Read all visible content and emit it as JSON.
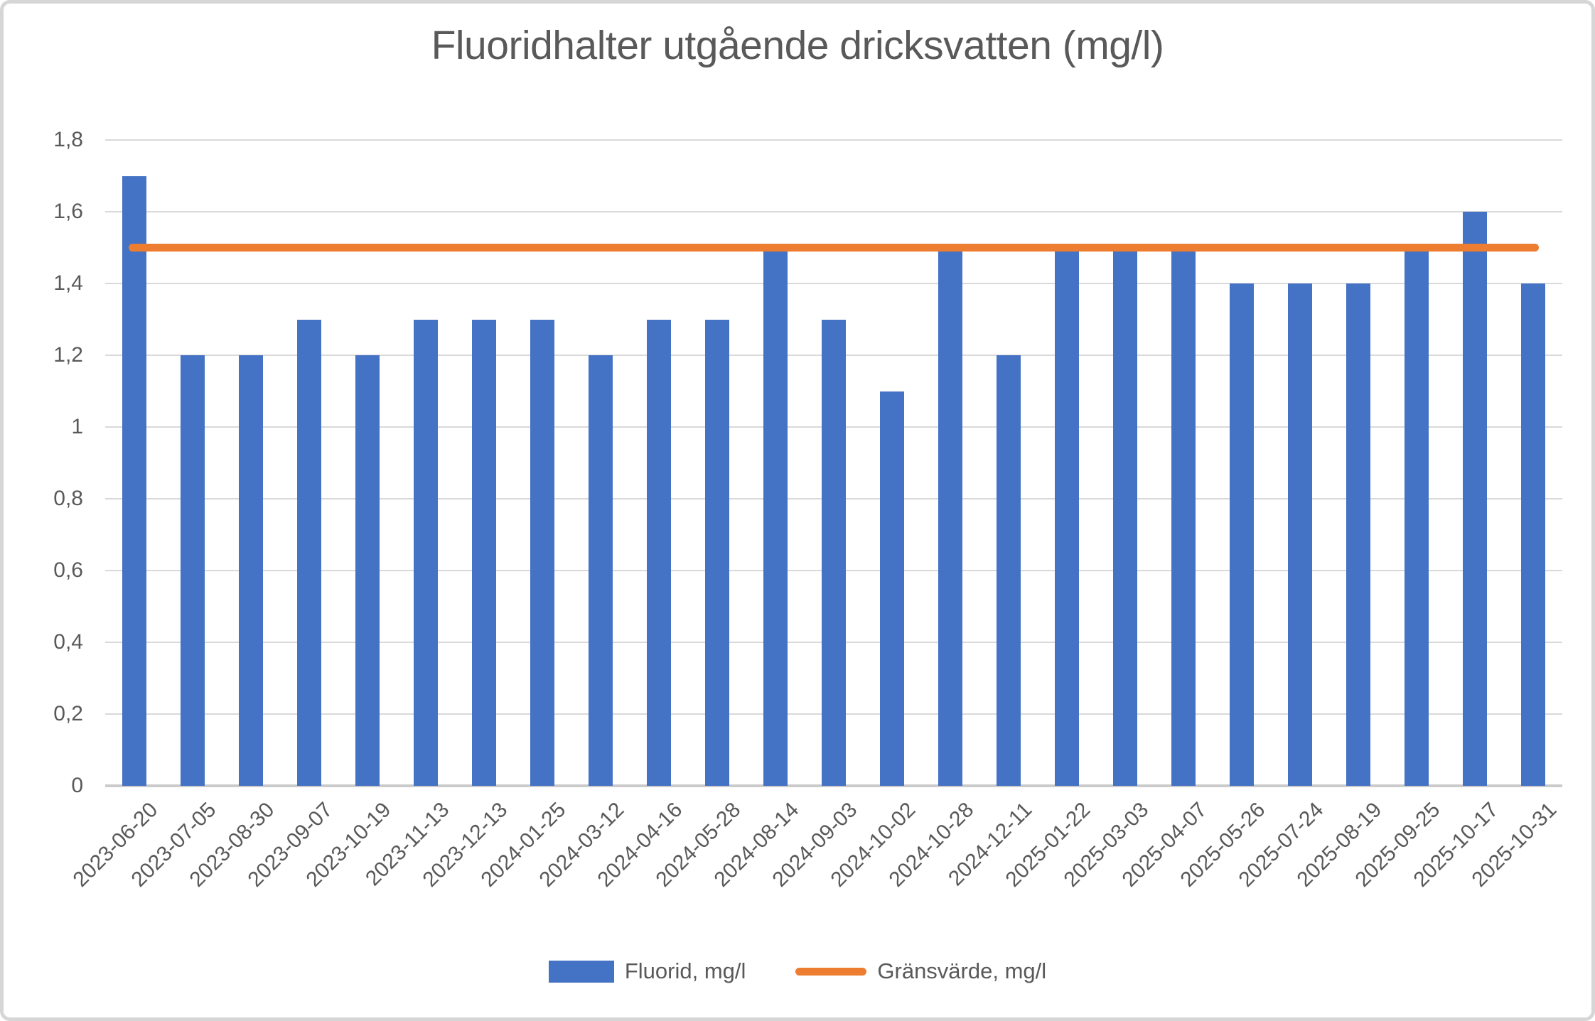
{
  "chart": {
    "title": "Fluoridhalter utgående dricksvatten (mg/l)"
  },
  "chart_data": {
    "type": "bar",
    "title": "Fluoridhalter utgående dricksvatten (mg/l)",
    "categories": [
      "2023-06-20",
      "2023-07-05",
      "2023-08-30",
      "2023-09-07",
      "2023-10-19",
      "2023-11-13",
      "2023-12-13",
      "2024-01-25",
      "2024-03-12",
      "2024-04-16",
      "2024-05-28",
      "2024-08-14",
      "2024-09-03",
      "2024-10-02",
      "2024-10-28",
      "2024-12-11",
      "2025-01-22",
      "2025-03-03",
      "2025-04-07",
      "2025-05-26",
      "2025-07-24",
      "2025-08-19",
      "2025-09-25",
      "2025-10-17",
      "2025-10-31"
    ],
    "series": [
      {
        "name": "Fluorid, mg/l",
        "type": "bar",
        "color": "#4472C4",
        "values": [
          1.7,
          1.2,
          1.2,
          1.3,
          1.2,
          1.3,
          1.3,
          1.3,
          1.2,
          1.3,
          1.3,
          1.49,
          1.3,
          1.1,
          1.49,
          1.2,
          1.49,
          1.49,
          1.49,
          1.4,
          1.4,
          1.4,
          1.49,
          1.6,
          1.4
        ]
      },
      {
        "name": "Gränsvärde, mg/l",
        "type": "line",
        "color": "#ED7D31",
        "value": 1.5
      }
    ],
    "ylim": [
      0,
      1.8
    ],
    "ytick_step": 0.2,
    "ytick_labels_top_to_bottom": [
      "1,8",
      "1,6",
      "1,4",
      "1,2",
      "1",
      "0,8",
      "0,6",
      "0,4",
      "0,2",
      "0"
    ],
    "decimal_separator": ",",
    "grid": true,
    "x_tick_rotation_deg": 45,
    "legend_position": "bottom"
  },
  "legend": {
    "items": [
      {
        "label": "Fluorid, mg/l",
        "swatch": "bar",
        "color": "#4472C4"
      },
      {
        "label": "Gränsvärde, mg/l",
        "swatch": "line",
        "color": "#ED7D31"
      }
    ]
  },
  "colors": {
    "bar": "#4472C4",
    "limit_line": "#ED7D31",
    "text": "#595959",
    "gridline": "#D9D9D9",
    "axis_line": "#CBCBCB",
    "border": "#D6D6D6",
    "background": "#FFFFFF"
  }
}
